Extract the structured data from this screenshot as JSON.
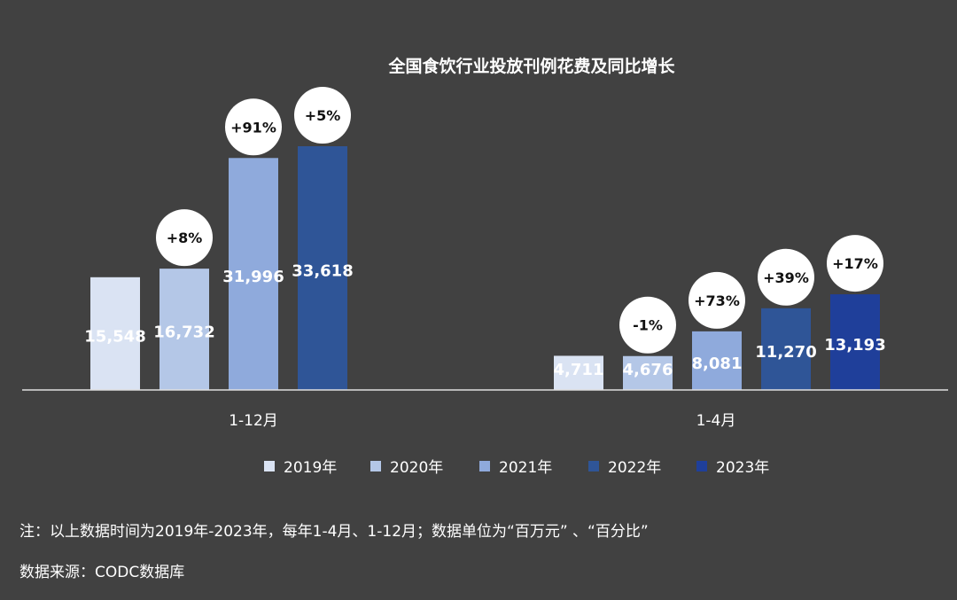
{
  "chart_data": {
    "type": "bar",
    "title": "全国食饮行业投放刊例花费及同比增长",
    "categories": [
      "1-12月",
      "1-4月"
    ],
    "series": [
      {
        "name": "2019年",
        "color": "#dae3f3",
        "values": [
          15548,
          4711
        ],
        "labels": [
          "15,548",
          "4,711"
        ],
        "growth": [
          null,
          null
        ]
      },
      {
        "name": "2020年",
        "color": "#b4c7e7",
        "values": [
          16732,
          4676
        ],
        "labels": [
          "16,732",
          "4,676"
        ],
        "growth": [
          "+8%",
          "-1%"
        ]
      },
      {
        "name": "2021年",
        "color": "#8faadc",
        "values": [
          31996,
          8081
        ],
        "labels": [
          "31,996",
          "8,081"
        ],
        "growth": [
          "+91%",
          "+73%"
        ]
      },
      {
        "name": "2022年",
        "color": "#2f5597",
        "values": [
          33618,
          11270
        ],
        "labels": [
          "33,618",
          "11,270"
        ],
        "growth": [
          "+5%",
          "+39%"
        ]
      },
      {
        "name": "2023年",
        "color": "#1f3f9a",
        "values": [
          null,
          13193
        ],
        "labels": [
          null,
          "13,193"
        ],
        "growth": [
          null,
          "+17%"
        ]
      }
    ],
    "xlabel": "",
    "ylabel": "",
    "ylim": [
      0,
      33618
    ],
    "grid": false,
    "legend": "bottom"
  },
  "notes": {
    "line1": "注：以上数据时间为2019年-2023年，每年1-4月、1-12月；数据单位为“百万元” 、“百分比”",
    "line2": "数据来源：CODC数据库"
  }
}
